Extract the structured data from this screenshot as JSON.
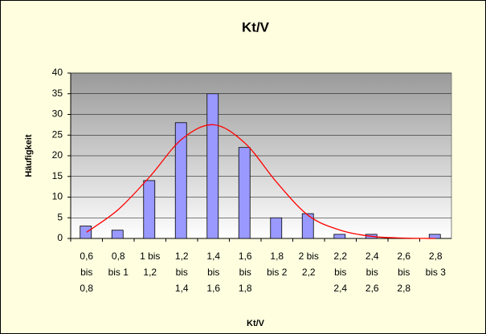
{
  "chart_data": {
    "type": "bar",
    "title": "Kt/V",
    "x_label": "Kt/V",
    "y_label": "Häufigkeit",
    "categories": [
      [
        "0,6",
        "bis",
        "0,8"
      ],
      [
        "0,8",
        "bis 1"
      ],
      [
        "1 bis",
        "1,2"
      ],
      [
        "1,2",
        "bis",
        "1,4"
      ],
      [
        "1,4",
        "bis",
        "1,6"
      ],
      [
        "1,6",
        "bis",
        "1,8"
      ],
      [
        "1,8",
        "bis 2"
      ],
      [
        "2 bis",
        "2,2"
      ],
      [
        "2,2",
        "bis",
        "2,4"
      ],
      [
        "2,4",
        "bis",
        "2,6"
      ],
      [
        "2,6",
        "bis",
        "2,8"
      ],
      [
        "2,8",
        "bis 3"
      ]
    ],
    "series": [
      {
        "color": "#9999ff",
        "values": [
          3,
          2,
          14,
          28,
          35,
          22,
          5,
          6,
          1,
          1,
          0,
          1
        ]
      },
      {
        "type": "line",
        "color": "#ff0000",
        "values": [
          1.5,
          7,
          15,
          24,
          27.5,
          23,
          13.5,
          5.5,
          2,
          0.5,
          0.1,
          0
        ]
      }
    ],
    "ylim": [
      0,
      40
    ],
    "yticks": [
      0,
      5,
      10,
      15,
      20,
      25,
      30,
      35,
      40
    ],
    "grid": true
  }
}
